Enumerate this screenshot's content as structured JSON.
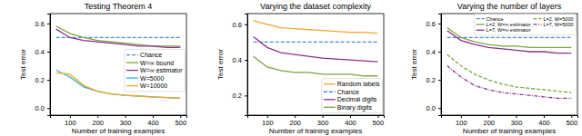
{
  "chart_data": [
    {
      "type": "line",
      "title": "Testing Theorem 4",
      "x_label": "Number of training examples",
      "y_label": "Test error",
      "x": [
        50,
        100,
        150,
        200,
        250,
        300,
        350,
        400,
        450,
        500
      ],
      "xlim": [
        28,
        522
      ],
      "xticks": [
        100,
        200,
        300,
        400,
        500
      ],
      "ylim": [
        -0.05,
        0.67
      ],
      "yticks": [
        {
          "value": 0,
          "label": "0.0"
        },
        0.2,
        0.4,
        0.6
      ],
      "legend": "center right",
      "series": [
        {
          "name": "Chance",
          "color": "#4a86e8",
          "line_style": "dashed",
          "values": [
            0.5,
            0.5,
            0.5,
            0.5,
            0.5,
            0.5,
            0.5,
            0.5,
            0.5,
            0.5
          ]
        },
        {
          "name": "W=∞ bound",
          "color": "#7aa63c",
          "line_style": "solid",
          "values": [
            0.58,
            0.53,
            0.5,
            0.48,
            0.47,
            0.46,
            0.45,
            0.44,
            0.44,
            0.44
          ]
        },
        {
          "name": "W=∞ estimator",
          "color": "#8e2f8e",
          "line_style": "solid",
          "values": [
            0.56,
            0.5,
            0.48,
            0.47,
            0.46,
            0.45,
            0.44,
            0.44,
            0.43,
            0.43
          ]
        },
        {
          "name": "W=5000",
          "color": "#29b6e0",
          "line_style": "solid",
          "values": [
            0.27,
            0.22,
            0.15,
            0.12,
            0.1,
            0.09,
            0.085,
            0.08,
            0.075,
            0.07
          ]
        },
        {
          "name": "W=10000",
          "color": "#f5a623",
          "line_style": "solid",
          "values": [
            0.25,
            0.24,
            0.16,
            0.12,
            0.1,
            0.09,
            0.085,
            0.08,
            0.075,
            0.07
          ]
        }
      ]
    },
    {
      "type": "line",
      "title": "Varying the dataset complexity",
      "x_label": "Number of training examples",
      "y_label": "Test error",
      "x": [
        50,
        100,
        150,
        200,
        250,
        300,
        350,
        400,
        450,
        500
      ],
      "xlim": [
        28,
        522
      ],
      "xticks": [
        100,
        200,
        300,
        400,
        500
      ],
      "ylim": [
        0.09,
        0.66
      ],
      "yticks": [
        0.2,
        0.4,
        0.6
      ],
      "legend": "lower right",
      "series": [
        {
          "name": "Random labels",
          "color": "#f5a623",
          "line_style": "solid",
          "values": [
            0.62,
            0.6,
            0.58,
            0.575,
            0.57,
            0.565,
            0.56,
            0.555,
            0.555,
            0.55
          ]
        },
        {
          "name": "Chance",
          "color": "#4a86e8",
          "line_style": "dashed",
          "values": [
            0.5,
            0.5,
            0.5,
            0.5,
            0.5,
            0.5,
            0.5,
            0.5,
            0.5,
            0.5
          ]
        },
        {
          "name": "Decimal digits",
          "color": "#8e2f8e",
          "line_style": "solid",
          "values": [
            0.53,
            0.47,
            0.44,
            0.43,
            0.42,
            0.41,
            0.405,
            0.4,
            0.395,
            0.39
          ]
        },
        {
          "name": "Binary digits",
          "color": "#7aa63c",
          "line_style": "solid",
          "values": [
            0.42,
            0.36,
            0.34,
            0.33,
            0.33,
            0.32,
            0.32,
            0.32,
            0.31,
            0.31
          ]
        }
      ]
    },
    {
      "type": "line",
      "title": "Varying the number of layers",
      "x_label": "Number of training examples",
      "y_label": "Test error",
      "x": [
        50,
        100,
        150,
        200,
        250,
        300,
        350,
        400,
        450,
        500
      ],
      "xlim": [
        28,
        522
      ],
      "xticks": [
        100,
        200,
        300,
        400,
        500
      ],
      "ylim": [
        -0.05,
        0.67
      ],
      "yticks": [
        {
          "value": 0,
          "label": "0.0"
        },
        0.2,
        0.4,
        0.6
      ],
      "legend": "upper right",
      "series": [
        {
          "name": "Chance",
          "color": "#4a86e8",
          "line_style": "dashed",
          "values": [
            0.5,
            0.5,
            0.5,
            0.5,
            0.5,
            0.5,
            0.5,
            0.5,
            0.5,
            0.5
          ]
        },
        {
          "name": "L=2, W=∞ estimator",
          "color": "#7aa63c",
          "line_style": "solid",
          "values": [
            0.57,
            0.5,
            0.47,
            0.45,
            0.44,
            0.44,
            0.43,
            0.43,
            0.43,
            0.43
          ]
        },
        {
          "name": "L=7, W=∞ estimator",
          "color": "#8e2f8e",
          "line_style": "solid",
          "values": [
            0.55,
            0.48,
            0.45,
            0.43,
            0.42,
            0.41,
            0.4,
            0.4,
            0.39,
            0.39
          ]
        },
        {
          "name": "L=2, W=5000",
          "color": "#7aa63c",
          "line_style": "dashed",
          "values": [
            0.38,
            0.3,
            0.24,
            0.2,
            0.17,
            0.15,
            0.14,
            0.13,
            0.12,
            0.11
          ]
        },
        {
          "name": "L=7, W=5000",
          "color": "#8e2f8e",
          "line_style": "dashdot",
          "values": [
            0.3,
            0.22,
            0.16,
            0.13,
            0.11,
            0.1,
            0.09,
            0.08,
            0.07,
            0.07
          ]
        }
      ]
    }
  ]
}
